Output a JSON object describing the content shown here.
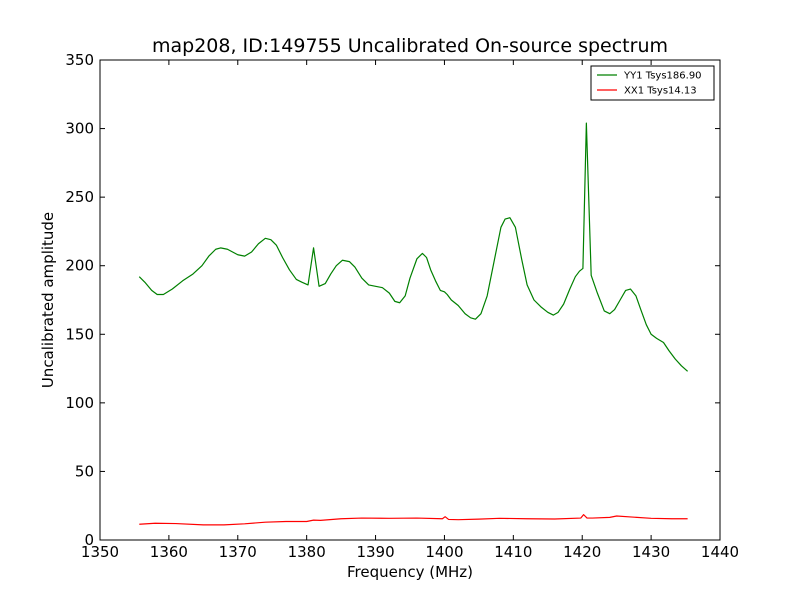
{
  "chart_data": {
    "type": "line",
    "title": "map208, ID:149755 Uncalibrated On-source spectrum",
    "xlabel": "Frequency (MHz)",
    "ylabel": "Uncalibrated amplitude",
    "xlim": [
      1350,
      1440
    ],
    "ylim": [
      0,
      350
    ],
    "xticks": [
      1350,
      1360,
      1370,
      1380,
      1390,
      1400,
      1410,
      1420,
      1430,
      1440
    ],
    "yticks": [
      0,
      50,
      100,
      150,
      200,
      250,
      300,
      350
    ],
    "grid": false,
    "legend_position": "top-right",
    "series": [
      {
        "name": "YY1 Tsys186.90",
        "color": "#008000",
        "x": [
          1355.7,
          1356.5,
          1357.5,
          1358.3,
          1359.2,
          1360.5,
          1362,
          1363.5,
          1364.8,
          1365.8,
          1366.8,
          1367.5,
          1368.5,
          1370,
          1371,
          1372,
          1373,
          1374,
          1374.8,
          1375.6,
          1376.5,
          1377.5,
          1378.5,
          1379.3,
          1380.2,
          1381,
          1381.8,
          1382.7,
          1383.5,
          1384.3,
          1385.2,
          1386.2,
          1387,
          1388,
          1389,
          1390,
          1391,
          1392,
          1392.8,
          1393.5,
          1394.3,
          1395,
          1396,
          1396.8,
          1397.4,
          1398,
          1398.7,
          1399.4,
          1400,
          1400.4,
          1401,
          1402,
          1403,
          1403.8,
          1404.5,
          1405.3,
          1406.2,
          1407.2,
          1408.2,
          1408.8,
          1409.5,
          1410.3,
          1411.2,
          1412,
          1413,
          1414,
          1415,
          1415.8,
          1416.5,
          1417.3,
          1418.2,
          1419,
          1419.6,
          1420.1,
          1420.6,
          1421.3,
          1422.2,
          1423.2,
          1424,
          1424.7,
          1425.5,
          1426.3,
          1427,
          1427.8,
          1428.5,
          1429.3,
          1430,
          1430.8,
          1431.8,
          1432.6,
          1433.5,
          1434.4,
          1435.3
        ],
        "values": [
          192,
          188,
          182,
          179,
          179,
          183,
          189,
          194,
          200,
          207,
          212,
          213,
          212,
          208,
          207,
          210,
          216,
          220,
          219,
          215,
          206,
          197,
          190,
          188,
          186,
          213,
          185,
          187,
          194,
          200,
          204,
          203,
          199,
          191,
          186,
          185,
          184,
          180,
          174,
          173,
          178,
          191,
          205,
          209,
          206,
          197,
          189,
          182,
          181,
          179,
          175,
          171,
          165,
          162,
          161,
          165,
          178,
          203,
          228,
          234,
          235,
          228,
          205,
          186,
          175,
          170,
          166,
          164,
          166,
          172,
          183,
          192,
          196,
          198,
          304,
          193,
          180,
          167,
          165,
          168,
          175,
          182,
          183,
          178,
          168,
          157,
          150,
          147,
          144,
          138,
          132,
          127,
          123
        ]
      },
      {
        "name": "XX1 Tsys14.13",
        "color": "#ff0000",
        "x": [
          1355.7,
          1358,
          1361,
          1365,
          1368,
          1371,
          1374,
          1377,
          1380,
          1381,
          1382,
          1385,
          1388,
          1392,
          1396,
          1399.7,
          1400.1,
          1400.6,
          1402,
          1405,
          1408,
          1412,
          1416,
          1419.8,
          1420.2,
          1420.7,
          1421.5,
          1424,
          1425,
          1427,
          1430,
          1433,
          1435.3
        ],
        "values": [
          11.5,
          12.2,
          12,
          11,
          11,
          11.8,
          13,
          13.5,
          13.5,
          14.5,
          14.3,
          15.5,
          16,
          15.8,
          16,
          15.5,
          17,
          15,
          14.8,
          15.2,
          15.8,
          15.5,
          15.3,
          16,
          18.5,
          16,
          16,
          16.5,
          17.5,
          16.8,
          15.8,
          15.5,
          15.5
        ]
      }
    ]
  }
}
